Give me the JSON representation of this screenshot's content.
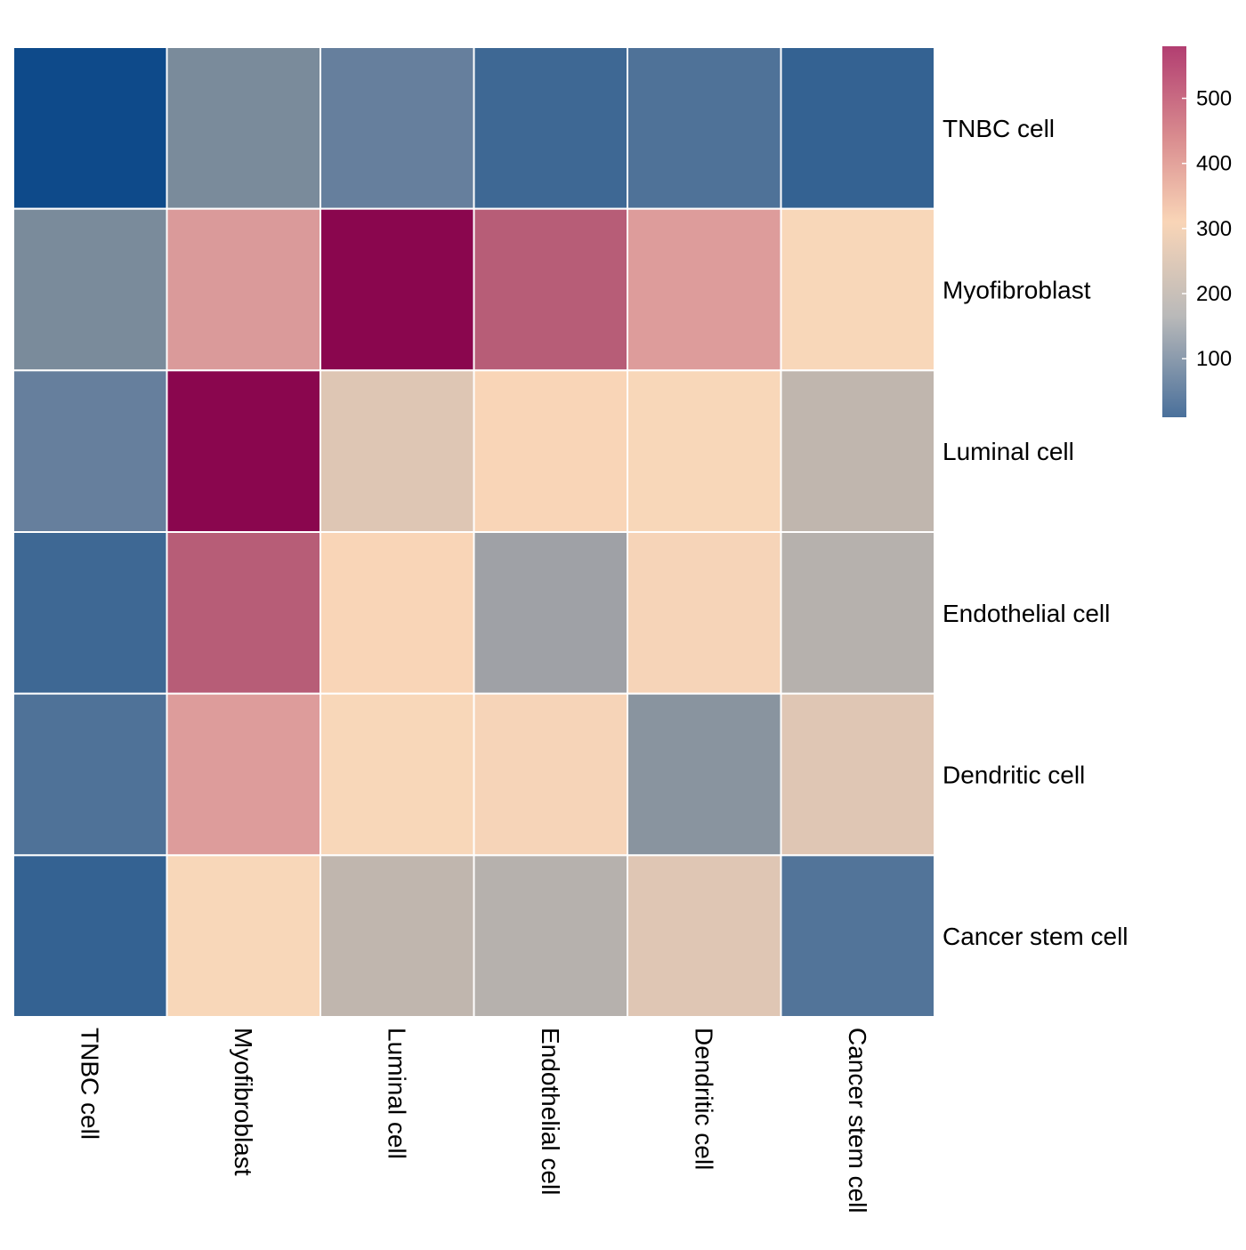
{
  "chart_data": {
    "type": "heatmap",
    "title": "",
    "rows": [
      "TNBC cell",
      "Myofibroblast",
      "Luminal cell",
      "Endothelial cell",
      "Dendritic cell",
      "Cancer stem cell"
    ],
    "columns": [
      "TNBC cell",
      "Myofibroblast",
      "Luminal cell",
      "Endothelial cell",
      "Dendritic cell",
      "Cancer stem cell"
    ],
    "values": [
      [
        0,
        150,
        110,
        50,
        75,
        40
      ],
      [
        150,
        400,
        580,
        500,
        410,
        300
      ],
      [
        110,
        580,
        270,
        310,
        300,
        230
      ],
      [
        50,
        500,
        310,
        175,
        290,
        215
      ],
      [
        75,
        410,
        300,
        290,
        160,
        260
      ],
      [
        40,
        300,
        230,
        215,
        260,
        80
      ]
    ],
    "colorbar": {
      "min": 10,
      "max": 580,
      "ticks": [
        100,
        200,
        300,
        400,
        500
      ],
      "colors": [
        {
          "value": 10,
          "color": "#4a709b"
        },
        {
          "value": 165,
          "color": "#b9b9b9"
        },
        {
          "value": 310,
          "color": "#f9d5b7"
        },
        {
          "value": 440,
          "color": "#d98c8f"
        },
        {
          "value": 580,
          "color": "#b23e71"
        }
      ]
    },
    "cell_colors": {
      "low": "#0e4a8a",
      "mid_low": "#6f8aa3",
      "mid": "#c0b6ae",
      "mid_high": "#f7d4b6",
      "high_pink": "#d9979b",
      "high": "#8a064e"
    },
    "grid_color": "#ffffff",
    "legend_position": "top-right"
  }
}
